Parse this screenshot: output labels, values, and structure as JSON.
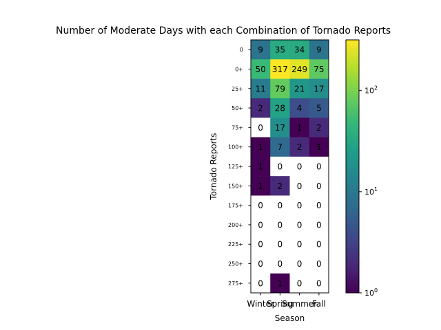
{
  "chart_data": {
    "type": "heatmap",
    "title": "Number of Moderate Days with each Combination of Tornado Reports",
    "xlabel": "Season",
    "ylabel": "Tornado Reports",
    "x_categories": [
      "Winter",
      "Spring",
      "Summer",
      "Fall"
    ],
    "y_categories": [
      "0",
      "0+",
      "25+",
      "50+",
      "75+",
      "100+",
      "125+",
      "150+",
      "175+",
      "200+",
      "225+",
      "250+",
      "275+"
    ],
    "values": [
      [
        9,
        35,
        34,
        9
      ],
      [
        50,
        317,
        249,
        75
      ],
      [
        11,
        79,
        21,
        17
      ],
      [
        2,
        28,
        4,
        5
      ],
      [
        0,
        17,
        1,
        2
      ],
      [
        1,
        7,
        2,
        1
      ],
      [
        1,
        0,
        0,
        0
      ],
      [
        1,
        2,
        0,
        0
      ],
      [
        0,
        0,
        0,
        0
      ],
      [
        0,
        0,
        0,
        0
      ],
      [
        0,
        0,
        0,
        0
      ],
      [
        0,
        0,
        0,
        0
      ],
      [
        0,
        1,
        0,
        0
      ]
    ],
    "colormap": "viridis",
    "color_scale": "log",
    "color_range": [
      1,
      317
    ],
    "zero_cell_color": "#ffffff",
    "colorbar_ticks": [
      {
        "value": 1,
        "base": "10",
        "exp": "0"
      },
      {
        "value": 10,
        "base": "10",
        "exp": "1"
      },
      {
        "value": 100,
        "base": "10",
        "exp": "2"
      }
    ]
  }
}
